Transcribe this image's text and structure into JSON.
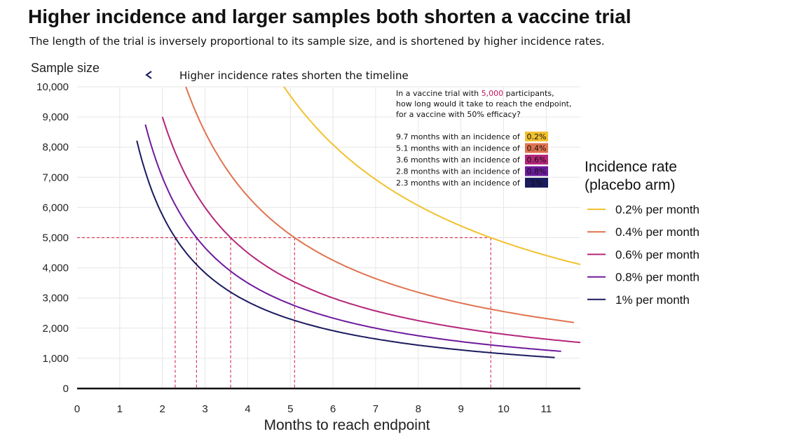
{
  "title": "Higher incidence and larger samples both shorten a vaccine trial",
  "subtitle": "The length of the trial is inversely proportional to its sample size, and is shortened by higher incidence rates.",
  "annotation": "Higher incidence rates shorten the timeline",
  "info_box": {
    "question_lines": [
      "In a vaccine trial with ",
      "how long would it take to reach the endpoint,",
      "for a vaccine with 50% efficacy?"
    ],
    "highlight_value": "5,000",
    "highlight_suffix": " participants,",
    "highlight_color": "#c2185b",
    "rows": [
      {
        "text": "9.7 months with an incidence of",
        "badge": "0.2%"
      },
      {
        "text": "5.1 months with an incidence of",
        "badge": "0.4%"
      },
      {
        "text": "3.6 months with an incidence of",
        "badge": "0.6%"
      },
      {
        "text": "2.8 months with an incidence of",
        "badge": "0.8%"
      },
      {
        "text": "2.3 months with an incidence of",
        "badge": "1%"
      }
    ]
  },
  "legend": {
    "title_lines": [
      "Incidence rate",
      "(placebo arm)"
    ]
  },
  "chart_data": {
    "type": "line",
    "title": "Higher incidence and larger samples both shorten a vaccine trial",
    "xlabel": "Months to reach endpoint",
    "ylabel": "Sample size",
    "xlim": [
      0,
      11.8
    ],
    "ylim": [
      0,
      10000
    ],
    "x_ticks": [
      "0",
      "1",
      "2",
      "3",
      "4",
      "5",
      "6",
      "7",
      "8",
      "9",
      "10",
      "11"
    ],
    "y_ticks": [
      "0",
      "1,000",
      "2,000",
      "3,000",
      "4,000",
      "5,000",
      "6,000",
      "7,000",
      "8,000",
      "9,000",
      "10,000"
    ],
    "grid": true,
    "legend_position": "right",
    "reference_sample_size": 5000,
    "series": [
      {
        "name": "0.2% per month",
        "color": "#f2c12e",
        "k": 48500,
        "x_start": 4.85,
        "x_end": 11.8,
        "endpoint_x": 9.7
      },
      {
        "name": "0.4% per month",
        "color": "#e0734f",
        "k": 25500,
        "x_start": 2.55,
        "x_end": 11.65,
        "endpoint_x": 5.1
      },
      {
        "name": "0.6% per month",
        "color": "#b5267a",
        "k": 18000,
        "x_start": 2.0,
        "x_end": 11.8,
        "endpoint_x": 3.6
      },
      {
        "name": "0.8% per month",
        "color": "#6e1a9c",
        "k": 14000,
        "x_start": 1.6,
        "x_end": 11.35,
        "endpoint_x": 2.8
      },
      {
        "name": "1% per month",
        "color": "#1a1a5e",
        "k": 11500,
        "x_start": 1.4,
        "x_end": 11.2,
        "endpoint_x": 2.3
      }
    ],
    "colors": {
      "reference_line": "#d63a5a",
      "grid": "#e6e6e6",
      "axis": "#111111"
    }
  }
}
